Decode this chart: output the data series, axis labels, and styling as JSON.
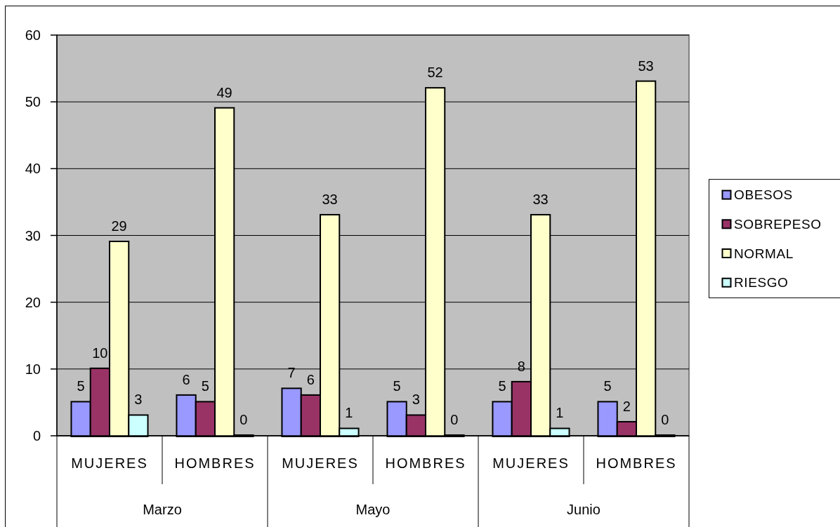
{
  "chart_data": {
    "type": "bar",
    "categories": [
      "MUJERES",
      "HOMBRES",
      "MUJERES",
      "HOMBRES",
      "MUJERES",
      "HOMBRES"
    ],
    "annotations": [
      "Marzo",
      "Mayo",
      "Junio"
    ],
    "series": [
      {
        "name": "OBESOS",
        "color": "#9999ff",
        "values": [
          5,
          6,
          7,
          5,
          5,
          5
        ]
      },
      {
        "name": "SOBREPESO",
        "color": "#993366",
        "values": [
          10,
          5,
          6,
          3,
          8,
          2
        ]
      },
      {
        "name": "NORMAL",
        "color": "#ffffcc",
        "values": [
          29,
          49,
          33,
          52,
          33,
          53
        ]
      },
      {
        "name": "RIESGO",
        "color": "#ccffff",
        "values": [
          3,
          0,
          1,
          0,
          1,
          0
        ]
      }
    ],
    "ylim": [
      0,
      60
    ],
    "yticks": [
      0,
      10,
      20,
      30,
      40,
      50,
      60
    ],
    "grid": "y",
    "legend": "right",
    "data_labels": true
  }
}
